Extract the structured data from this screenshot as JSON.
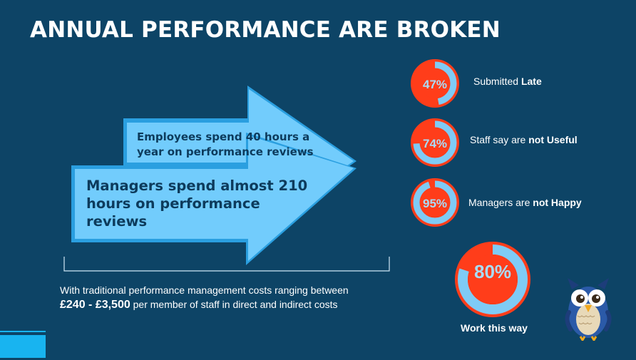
{
  "title": "ANNUAL PERFORMANCE ARE BROKEN",
  "arrows": {
    "employees_text": "Employees spend 40 hours a year on performance reviews",
    "managers_text": "Managers spend almost 210 hours on performance reviews"
  },
  "cost": {
    "line1": "With traditional performance management costs ranging between",
    "amount": "£240 - £3,500",
    "line2_rest": " per member of staff in direct and indirect costs"
  },
  "stats": [
    {
      "value": "47%",
      "fraction": 0.47,
      "label_plain": "Submitted ",
      "label_bold": "Late"
    },
    {
      "value": "74%",
      "fraction": 0.74,
      "label_plain": "Staff say are ",
      "label_bold": "not Useful"
    },
    {
      "value": "95%",
      "fraction": 0.95,
      "label_plain": "Managers are ",
      "label_bold": "not Happy"
    }
  ],
  "highlight": {
    "value": "80%",
    "fraction": 0.8,
    "caption": "Work this way"
  },
  "colors": {
    "background": "#0d4466",
    "arrow_fill": "#72ccfc",
    "ring_red": "#ff3d1a",
    "ring_blue": "#7fcbf5",
    "accent_bar": "#18b4f0"
  },
  "mascot": {
    "icon": "owl-icon"
  }
}
